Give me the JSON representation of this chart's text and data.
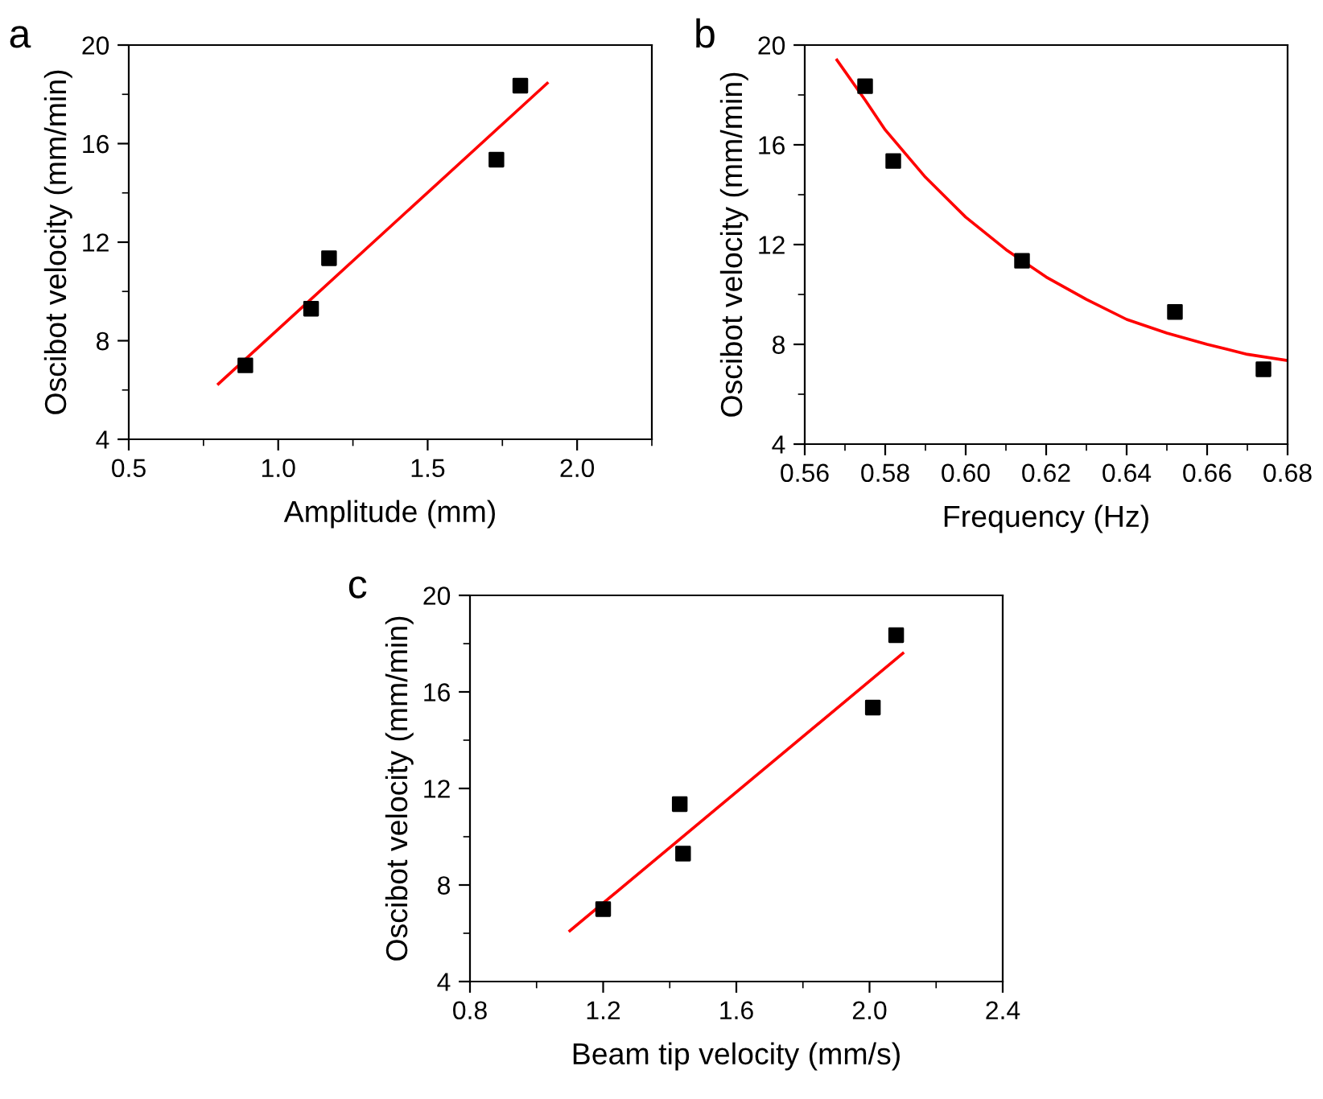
{
  "chart_data": [
    {
      "type": "scatter",
      "title": "a",
      "xlabel": "Amplitude (mm)",
      "ylabel": "Oscibot velocity (mm/min)",
      "xlim": [
        0.5,
        2.25
      ],
      "xticks": [
        0.5,
        {
          "value": 1,
          "label": "1.0"
        },
        1.5,
        {
          "value": 2,
          "label": "2.0"
        }
      ],
      "ylim": [
        4,
        20
      ],
      "yticks": [
        4,
        8,
        12,
        16,
        20
      ],
      "marker": "square",
      "grid": false,
      "legend": false,
      "series": [
        {
          "color": "#000000",
          "x": [
            0.89,
            1.11,
            1.17,
            1.73,
            1.81
          ],
          "values": [
            7.0,
            9.3,
            11.35,
            15.35,
            18.35
          ]
        },
        {
          "type": "line",
          "color": "#ff0000",
          "marker": "none",
          "x": [
            0.8,
            1.9
          ],
          "values": [
            6.25,
            18.45
          ]
        }
      ]
    },
    {
      "type": "scatter",
      "title": "b",
      "xlabel": "Frequency (Hz)",
      "ylabel": "Oscibot velocity (mm/min)",
      "xlim": [
        0.56,
        0.68
      ],
      "xticks": [
        0.56,
        0.58,
        {
          "value": 0.6,
          "label": "0.60"
        },
        0.62,
        0.64,
        0.66,
        0.68
      ],
      "ylim": [
        4,
        20
      ],
      "yticks": [
        4,
        8,
        12,
        16,
        20
      ],
      "marker": "square",
      "grid": false,
      "legend": false,
      "series": [
        {
          "color": "#000000",
          "x": [
            0.575,
            0.582,
            0.614,
            0.652,
            0.674
          ],
          "values": [
            18.35,
            15.35,
            11.35,
            9.3,
            7.0
          ]
        },
        {
          "type": "line",
          "color": "#ff0000",
          "marker": "none",
          "x": [
            0.568,
            0.575,
            0.58,
            0.59,
            0.6,
            0.61,
            0.62,
            0.63,
            0.64,
            0.65,
            0.66,
            0.67,
            0.68
          ],
          "values": [
            19.4,
            17.8,
            16.6,
            14.7,
            13.1,
            11.8,
            10.7,
            9.8,
            9.0,
            8.45,
            8.0,
            7.6,
            7.35
          ]
        }
      ]
    },
    {
      "type": "scatter",
      "title": "c",
      "xlabel": "Beam tip velocity (mm/s)",
      "ylabel": "Oscibot velocity (mm/min)",
      "xlim": [
        0.8,
        2.4
      ],
      "xticks": [
        0.8,
        1.2,
        1.6,
        {
          "value": 2,
          "label": "2.0"
        },
        2.4
      ],
      "ylim": [
        4,
        20
      ],
      "yticks": [
        4,
        8,
        12,
        16,
        20
      ],
      "marker": "square",
      "grid": false,
      "legend": false,
      "series": [
        {
          "color": "#000000",
          "x": [
            1.2,
            1.43,
            1.44,
            2.01,
            2.08
          ],
          "values": [
            7.0,
            11.35,
            9.3,
            15.35,
            18.35
          ]
        },
        {
          "type": "line",
          "color": "#ff0000",
          "marker": "none",
          "x": [
            1.1,
            2.1
          ],
          "values": [
            6.1,
            17.6
          ]
        }
      ]
    }
  ]
}
